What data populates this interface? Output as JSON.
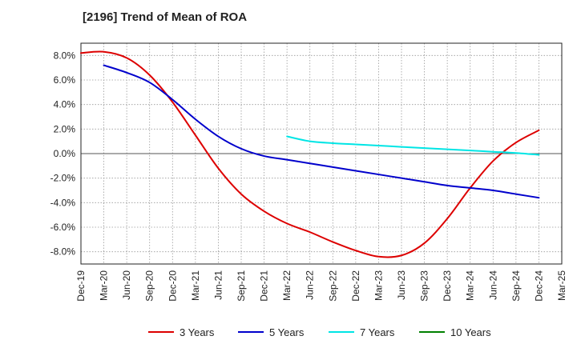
{
  "chart_data": {
    "type": "line",
    "title": "[2196]  Trend of Mean of ROA",
    "xlabel": "",
    "ylabel": "",
    "ylim": [
      -9.0,
      9.0
    ],
    "yticks": [
      8,
      6,
      4,
      2,
      0,
      -2,
      -4,
      -6,
      -8
    ],
    "ytick_labels": [
      "8.0%",
      "6.0%",
      "4.0%",
      "2.0%",
      "0.0%",
      "-2.0%",
      "-4.0%",
      "-6.0%",
      "-8.0%"
    ],
    "x_tick_labels": [
      "Dec-19",
      "Mar-20",
      "Jun-20",
      "Sep-20",
      "Dec-20",
      "Mar-21",
      "Jun-21",
      "Sep-21",
      "Dec-21",
      "Mar-22",
      "Jun-22",
      "Sep-22",
      "Dec-22",
      "Mar-23",
      "Jun-23",
      "Sep-23",
      "Dec-23",
      "Mar-24",
      "Jun-24",
      "Sep-24",
      "Dec-24",
      "Mar-25"
    ],
    "grid": true,
    "legend_position": "bottom",
    "series": [
      {
        "name": "3 Years",
        "color": "#dd0000",
        "values": [
          8.2,
          8.3,
          7.8,
          6.4,
          4.2,
          1.5,
          -1.2,
          -3.3,
          -4.7,
          -5.7,
          -6.4,
          -7.2,
          -7.9,
          -8.4,
          -8.3,
          -7.3,
          -5.3,
          -2.8,
          -0.6,
          0.9,
          1.9,
          null
        ]
      },
      {
        "name": "5 Years",
        "color": "#0000cc",
        "values": [
          null,
          7.2,
          6.6,
          5.8,
          4.4,
          2.8,
          1.4,
          0.4,
          -0.2,
          -0.5,
          -0.8,
          -1.1,
          -1.4,
          -1.7,
          -2.0,
          -2.3,
          -2.6,
          -2.8,
          -3.0,
          -3.3,
          -3.6,
          null
        ]
      },
      {
        "name": "7 Years",
        "color": "#00e5e5",
        "values": [
          null,
          null,
          null,
          null,
          null,
          null,
          null,
          null,
          null,
          1.4,
          1.0,
          0.85,
          0.75,
          0.65,
          0.55,
          0.45,
          0.35,
          0.25,
          0.15,
          0.05,
          -0.1,
          null
        ]
      },
      {
        "name": "10 Years",
        "color": "#008000",
        "values": [
          null,
          null,
          null,
          null,
          null,
          null,
          null,
          null,
          null,
          null,
          null,
          null,
          null,
          null,
          null,
          null,
          null,
          null,
          null,
          null,
          null,
          null
        ]
      }
    ]
  }
}
